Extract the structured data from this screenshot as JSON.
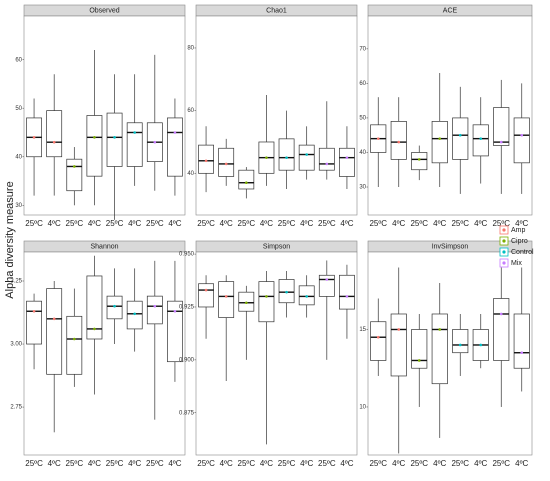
{
  "ylabel": "Alpha diversity measure",
  "chart_data": [
    {
      "type": "box",
      "title": "Observed",
      "categories": [
        "25ºC",
        "4ºC",
        "25ºC",
        "4ºC",
        "25ºC",
        "4ºC",
        "25ºC",
        "4ºC"
      ],
      "ylim": [
        28,
        69
      ],
      "yticks": [
        30,
        40,
        50,
        60
      ],
      "series": [
        {
          "name": "Amp",
          "color": "#F8766D",
          "low": [
            32,
            32
          ],
          "q1": [
            40,
            40
          ],
          "median": [
            44,
            43
          ],
          "q3": [
            48,
            49.5
          ],
          "high": [
            52,
            57
          ]
        },
        {
          "name": "Cipro",
          "color": "#7CAE00",
          "low": [
            30,
            30
          ],
          "q1": [
            33,
            36
          ],
          "median": [
            38,
            44
          ],
          "q3": [
            39.5,
            48.5
          ],
          "high": [
            42,
            62
          ]
        },
        {
          "name": "Control",
          "color": "#00BFC4",
          "low": [
            27,
            34
          ],
          "q1": [
            38,
            38
          ],
          "median": [
            44,
            45
          ],
          "q3": [
            49,
            47
          ],
          "high": [
            57,
            57
          ]
        },
        {
          "name": "Mix",
          "color": "#C77CFF",
          "low": [
            33,
            32
          ],
          "q1": [
            39,
            36
          ],
          "median": [
            43,
            45
          ],
          "q3": [
            47,
            48
          ],
          "high": [
            61,
            52
          ]
        }
      ]
    },
    {
      "type": "box",
      "title": "Chao1",
      "categories": [
        "25ºC",
        "4ºC",
        "25ºC",
        "4ºC",
        "25ºC",
        "4ºC",
        "25ºC",
        "4ºC"
      ],
      "ylim": [
        26.7,
        90.2
      ],
      "yticks": [
        40,
        60,
        80
      ],
      "series": [
        {
          "name": "Amp",
          "color": "#F8766D",
          "low": [
            34,
            36
          ],
          "q1": [
            40,
            39
          ],
          "median": [
            44,
            43
          ],
          "q3": [
            49,
            48
          ],
          "high": [
            55,
            51
          ]
        },
        {
          "name": "Cipro",
          "color": "#7CAE00",
          "low": [
            32,
            36
          ],
          "q1": [
            35,
            40
          ],
          "median": [
            37,
            45
          ],
          "q3": [
            41,
            50
          ],
          "high": [
            42,
            65
          ]
        },
        {
          "name": "Control",
          "color": "#00BFC4",
          "low": [
            35,
            38
          ],
          "q1": [
            41,
            41
          ],
          "median": [
            45,
            46
          ],
          "q3": [
            51,
            49
          ],
          "high": [
            60,
            55
          ]
        },
        {
          "name": "Mix",
          "color": "#C77CFF",
          "low": [
            38,
            35
          ],
          "q1": [
            41,
            39
          ],
          "median": [
            43,
            45
          ],
          "q3": [
            48,
            48
          ],
          "high": [
            63,
            55
          ]
        }
      ]
    },
    {
      "type": "box",
      "title": "ACE",
      "categories": [
        "25ºC",
        "4ºC",
        "25ºC",
        "4ºC",
        "25ºC",
        "4ºC",
        "25ºC",
        "4ºC"
      ],
      "ylim": [
        21.9,
        79.5
      ],
      "yticks": [
        30,
        40,
        50,
        60,
        70
      ],
      "series": [
        {
          "name": "Amp",
          "color": "#F8766D",
          "low": [
            30,
            30
          ],
          "q1": [
            40,
            38
          ],
          "median": [
            44,
            43
          ],
          "q3": [
            48,
            49
          ],
          "high": [
            56,
            56
          ]
        },
        {
          "name": "Cipro",
          "color": "#7CAE00",
          "low": [
            32,
            30
          ],
          "q1": [
            35,
            37
          ],
          "median": [
            38,
            44
          ],
          "q3": [
            40,
            49
          ],
          "high": [
            42,
            63
          ]
        },
        {
          "name": "Control",
          "color": "#00BFC4",
          "low": [
            28,
            31
          ],
          "q1": [
            38,
            39
          ],
          "median": [
            45,
            44
          ],
          "q3": [
            50,
            48
          ],
          "high": [
            59,
            56
          ]
        },
        {
          "name": "Mix",
          "color": "#C77CFF",
          "low": [
            28,
            28
          ],
          "q1": [
            42,
            37
          ],
          "median": [
            43,
            45
          ],
          "q3": [
            53,
            50
          ],
          "high": [
            61,
            60
          ]
        }
      ]
    },
    {
      "type": "box",
      "title": "Shannon",
      "categories": [
        "25ºC",
        "4ºC",
        "25ºC",
        "4ºC",
        "25ºC",
        "4ºC",
        "25ºC",
        "4ºC"
      ],
      "ylim": [
        2.56,
        3.365
      ],
      "yticks": [
        2.75,
        {
          "value": 3,
          "label": "3.00"
        },
        3.25
      ],
      "series": [
        {
          "name": "Amp",
          "color": "#F8766D",
          "low": [
            2.9,
            2.65
          ],
          "q1": [
            3.0,
            2.88
          ],
          "median": [
            3.13,
            3.1
          ],
          "q3": [
            3.17,
            3.22
          ],
          "high": [
            3.2,
            3.25
          ]
        },
        {
          "name": "Cipro",
          "color": "#7CAE00",
          "low": [
            2.83,
            2.8
          ],
          "q1": [
            2.88,
            3.02
          ],
          "median": [
            3.02,
            3.06
          ],
          "q3": [
            3.11,
            3.27
          ],
          "high": [
            3.22,
            3.35
          ]
        },
        {
          "name": "Control",
          "color": "#00BFC4",
          "low": [
            3.0,
            2.97
          ],
          "q1": [
            3.1,
            3.06
          ],
          "median": [
            3.15,
            3.12
          ],
          "q3": [
            3.19,
            3.17
          ],
          "high": [
            3.3,
            3.3
          ]
        },
        {
          "name": "Mix",
          "color": "#C77CFF",
          "low": [
            2.7,
            2.85
          ],
          "q1": [
            3.08,
            2.93
          ],
          "median": [
            3.15,
            3.13
          ],
          "q3": [
            3.19,
            3.17
          ],
          "high": [
            3.33,
            3.33
          ]
        }
      ]
    },
    {
      "type": "box",
      "title": "Simpson",
      "categories": [
        "25ºC",
        "4ºC",
        "25ºC",
        "4ºC",
        "25ºC",
        "4ºC",
        "25ºC",
        "4ºC"
      ],
      "ylim": [
        0.855,
        0.951
      ],
      "yticks": [
        0.875,
        {
          "value": 0.9,
          "label": "0.900"
        },
        0.925,
        {
          "value": 0.95,
          "label": "0.950"
        }
      ],
      "series": [
        {
          "name": "Amp",
          "color": "#F8766D",
          "low": [
            0.91,
            0.89
          ],
          "q1": [
            0.925,
            0.92
          ],
          "median": [
            0.933,
            0.93
          ],
          "q3": [
            0.936,
            0.937
          ],
          "high": [
            0.94,
            0.94
          ]
        },
        {
          "name": "Cipro",
          "color": "#7CAE00",
          "low": [
            0.9,
            0.86
          ],
          "q1": [
            0.923,
            0.918
          ],
          "median": [
            0.927,
            0.93
          ],
          "q3": [
            0.932,
            0.937
          ],
          "high": [
            0.935,
            0.942
          ]
        },
        {
          "name": "Control",
          "color": "#00BFC4",
          "low": [
            0.92,
            0.92
          ],
          "q1": [
            0.927,
            0.926
          ],
          "median": [
            0.932,
            0.93
          ],
          "q3": [
            0.938,
            0.935
          ],
          "high": [
            0.942,
            0.94
          ]
        },
        {
          "name": "Mix",
          "color": "#C77CFF",
          "low": [
            0.9,
            0.91
          ],
          "q1": [
            0.93,
            0.924
          ],
          "median": [
            0.938,
            0.93
          ],
          "q3": [
            0.94,
            0.94
          ],
          "high": [
            0.947,
            0.945
          ]
        }
      ]
    },
    {
      "type": "box",
      "title": "InvSimpson",
      "categories": [
        "25ºC",
        "4ºC",
        "25ºC",
        "4ºC",
        "25ºC",
        "4ºC",
        "25ºC",
        "4ºC"
      ],
      "ylim": [
        6.9,
        20
      ],
      "yticks": [
        10,
        15
      ],
      "series": [
        {
          "name": "Amp",
          "color": "#F8766D",
          "low": [
            12,
            7
          ],
          "q1": [
            13,
            12
          ],
          "median": [
            14.5,
            15
          ],
          "q3": [
            15.5,
            16
          ],
          "high": [
            17,
            19
          ]
        },
        {
          "name": "Cipro",
          "color": "#7CAE00",
          "low": [
            10,
            8
          ],
          "q1": [
            12.5,
            11.5
          ],
          "median": [
            13,
            15
          ],
          "q3": [
            15,
            16
          ],
          "high": [
            16,
            18
          ]
        },
        {
          "name": "Control",
          "color": "#00BFC4",
          "low": [
            12,
            12.5
          ],
          "q1": [
            13.5,
            13
          ],
          "median": [
            14,
            14
          ],
          "q3": [
            15,
            15
          ],
          "high": [
            16,
            16
          ]
        },
        {
          "name": "Mix",
          "color": "#C77CFF",
          "low": [
            10,
            11
          ],
          "q1": [
            13,
            12.5
          ],
          "median": [
            16,
            13.5
          ],
          "q3": [
            17,
            16
          ],
          "high": [
            19,
            19
          ]
        }
      ]
    }
  ]
}
